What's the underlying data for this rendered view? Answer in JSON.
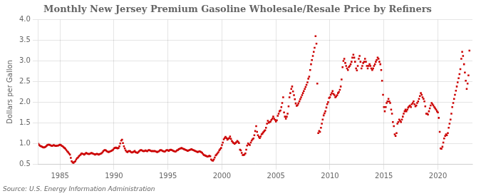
{
  "chart_data": {
    "type": "scatter",
    "title": "Monthly New Jersey Premium Gasoline Wholesale/Resale Price by Refiners",
    "ylabel": "Dollars per Gallon",
    "source": "Source: U.S. Energy Information Administration",
    "color": "#CC0000",
    "marker": "square",
    "grid": true,
    "xlim": [
      1983.0,
      2023.2
    ],
    "ylim": [
      0.5,
      4.0
    ],
    "xticks": [
      1985,
      1990,
      1995,
      2000,
      2005,
      2010,
      2015,
      2020
    ],
    "yticks": [
      0.5,
      {
        "value": 1.0,
        "label": "1.0"
      },
      1.5,
      {
        "value": 2.0,
        "label": "2.0"
      },
      2.5,
      {
        "value": 3.0,
        "label": "3.0"
      },
      3.5,
      {
        "value": 4.0,
        "label": "4.0"
      }
    ],
    "x": [
      1983.0,
      1983.08,
      1983.17,
      1983.25,
      1983.33,
      1983.42,
      1983.5,
      1983.58,
      1983.67,
      1983.75,
      1983.83,
      1983.92,
      1984.0,
      1984.08,
      1984.17,
      1984.25,
      1984.33,
      1984.42,
      1984.5,
      1984.58,
      1984.67,
      1984.75,
      1984.83,
      1984.92,
      1985.0,
      1985.08,
      1985.17,
      1985.25,
      1985.33,
      1985.42,
      1985.5,
      1985.58,
      1985.67,
      1985.75,
      1985.83,
      1985.92,
      1986.0,
      1986.08,
      1986.17,
      1986.25,
      1986.33,
      1986.42,
      1986.5,
      1986.58,
      1986.67,
      1986.75,
      1986.83,
      1986.92,
      1987.0,
      1987.08,
      1987.17,
      1987.25,
      1987.33,
      1987.42,
      1987.5,
      1987.58,
      1987.67,
      1987.75,
      1987.83,
      1987.92,
      1988.0,
      1988.08,
      1988.17,
      1988.25,
      1988.33,
      1988.42,
      1988.5,
      1988.58,
      1988.67,
      1988.75,
      1988.83,
      1988.92,
      1989.0,
      1989.08,
      1989.17,
      1989.25,
      1989.33,
      1989.42,
      1989.5,
      1989.58,
      1989.67,
      1989.75,
      1989.83,
      1989.92,
      1990.0,
      1990.08,
      1990.17,
      1990.25,
      1990.33,
      1990.42,
      1990.5,
      1990.58,
      1990.67,
      1990.75,
      1990.83,
      1990.92,
      1991.0,
      1991.08,
      1991.17,
      1991.25,
      1991.33,
      1991.42,
      1991.5,
      1991.58,
      1991.67,
      1991.75,
      1991.83,
      1991.92,
      1992.0,
      1992.08,
      1992.17,
      1992.25,
      1992.33,
      1992.42,
      1992.5,
      1992.58,
      1992.67,
      1992.75,
      1992.83,
      1992.92,
      1993.0,
      1993.08,
      1993.17,
      1993.25,
      1993.33,
      1993.42,
      1993.5,
      1993.58,
      1993.67,
      1993.75,
      1993.83,
      1993.92,
      1994.0,
      1994.08,
      1994.17,
      1994.25,
      1994.33,
      1994.42,
      1994.5,
      1994.58,
      1994.67,
      1994.75,
      1994.83,
      1994.92,
      1995.0,
      1995.08,
      1995.17,
      1995.25,
      1995.33,
      1995.42,
      1995.5,
      1995.58,
      1995.67,
      1995.75,
      1995.83,
      1995.92,
      1996.0,
      1996.08,
      1996.17,
      1996.25,
      1996.33,
      1996.42,
      1996.5,
      1996.58,
      1996.67,
      1996.75,
      1996.83,
      1996.92,
      1997.0,
      1997.08,
      1997.17,
      1997.25,
      1997.33,
      1997.42,
      1997.5,
      1997.58,
      1997.67,
      1997.75,
      1997.83,
      1997.92,
      1998.0,
      1998.08,
      1998.17,
      1998.25,
      1998.33,
      1998.42,
      1998.5,
      1998.58,
      1998.67,
      1998.75,
      1998.83,
      1998.92,
      1999.0,
      1999.08,
      1999.17,
      1999.25,
      1999.33,
      1999.42,
      1999.5,
      1999.58,
      1999.67,
      1999.75,
      1999.83,
      1999.92,
      2000.0,
      2000.08,
      2000.17,
      2000.25,
      2000.33,
      2000.42,
      2000.5,
      2000.58,
      2000.67,
      2000.75,
      2000.83,
      2000.92,
      2001.0,
      2001.08,
      2001.17,
      2001.25,
      2001.33,
      2001.42,
      2001.5,
      2001.58,
      2001.67,
      2001.75,
      2001.83,
      2001.92,
      2002.0,
      2002.08,
      2002.17,
      2002.25,
      2002.33,
      2002.42,
      2002.5,
      2002.58,
      2002.67,
      2002.75,
      2002.83,
      2002.92,
      2003.0,
      2003.08,
      2003.17,
      2003.25,
      2003.33,
      2003.42,
      2003.5,
      2003.58,
      2003.67,
      2003.75,
      2003.83,
      2003.92,
      2004.0,
      2004.08,
      2004.17,
      2004.25,
      2004.33,
      2004.42,
      2004.5,
      2004.58,
      2004.67,
      2004.75,
      2004.83,
      2004.92,
      2005.0,
      2005.08,
      2005.17,
      2005.25,
      2005.33,
      2005.42,
      2005.5,
      2005.58,
      2005.67,
      2005.75,
      2005.83,
      2005.92,
      2006.0,
      2006.08,
      2006.17,
      2006.25,
      2006.33,
      2006.42,
      2006.5,
      2006.58,
      2006.67,
      2006.75,
      2006.83,
      2006.92,
      2007.0,
      2007.08,
      2007.17,
      2007.25,
      2007.33,
      2007.42,
      2007.5,
      2007.58,
      2007.67,
      2007.75,
      2007.83,
      2007.92,
      2008.0,
      2008.08,
      2008.17,
      2008.25,
      2008.33,
      2008.42,
      2008.5,
      2008.58,
      2008.67,
      2008.75,
      2008.83,
      2008.92,
      2009.0,
      2009.08,
      2009.17,
      2009.25,
      2009.33,
      2009.42,
      2009.5,
      2009.58,
      2009.67,
      2009.75,
      2009.83,
      2009.92,
      2010.0,
      2010.08,
      2010.17,
      2010.25,
      2010.33,
      2010.42,
      2010.5,
      2010.58,
      2010.67,
      2010.75,
      2010.83,
      2010.92,
      2011.0,
      2011.08,
      2011.17,
      2011.25,
      2011.33,
      2011.42,
      2011.5,
      2011.58,
      2011.67,
      2011.75,
      2011.83,
      2011.92,
      2012.0,
      2012.08,
      2012.17,
      2012.25,
      2012.33,
      2012.42,
      2012.5,
      2012.58,
      2012.67,
      2012.75,
      2012.83,
      2012.92,
      2013.0,
      2013.08,
      2013.17,
      2013.25,
      2013.33,
      2013.42,
      2013.5,
      2013.58,
      2013.67,
      2013.75,
      2013.83,
      2013.92,
      2014.0,
      2014.08,
      2014.17,
      2014.25,
      2014.33,
      2014.42,
      2014.5,
      2014.58,
      2014.67,
      2014.75,
      2014.83,
      2014.92,
      2015.0,
      2015.08,
      2015.17,
      2015.25,
      2015.33,
      2015.42,
      2015.5,
      2015.58,
      2015.67,
      2015.75,
      2015.83,
      2015.92,
      2016.0,
      2016.08,
      2016.17,
      2016.25,
      2016.33,
      2016.42,
      2016.5,
      2016.58,
      2016.67,
      2016.75,
      2016.83,
      2016.92,
      2017.0,
      2017.08,
      2017.17,
      2017.25,
      2017.33,
      2017.42,
      2017.5,
      2017.58,
      2017.67,
      2017.75,
      2017.83,
      2017.92,
      2018.0,
      2018.08,
      2018.17,
      2018.25,
      2018.33,
      2018.42,
      2018.5,
      2018.58,
      2018.67,
      2018.75,
      2018.83,
      2018.92,
      2019.0,
      2019.08,
      2019.17,
      2019.25,
      2019.33,
      2019.42,
      2019.5,
      2019.58,
      2019.67,
      2019.75,
      2019.83,
      2019.92,
      2020.0,
      2020.08,
      2020.17,
      2020.25,
      2020.33,
      2020.42,
      2020.5,
      2020.58,
      2020.67,
      2020.75,
      2020.83,
      2020.92,
      2021.0,
      2021.08,
      2021.17,
      2021.25,
      2021.33,
      2021.42,
      2021.5,
      2021.58,
      2021.67,
      2021.75,
      2021.83,
      2021.92,
      2022.0,
      2022.08,
      2022.17,
      2022.25,
      2022.33,
      2022.42,
      2022.5,
      2022.58,
      2022.67,
      2022.75,
      2022.83,
      2022.92
    ],
    "values": [
      0.99,
      0.96,
      0.94,
      0.93,
      0.92,
      0.91,
      0.9,
      0.91,
      0.92,
      0.94,
      0.96,
      0.97,
      0.97,
      0.96,
      0.95,
      0.94,
      0.95,
      0.96,
      0.95,
      0.94,
      0.94,
      0.95,
      0.95,
      0.96,
      0.97,
      0.96,
      0.94,
      0.93,
      0.91,
      0.89,
      0.87,
      0.84,
      0.81,
      0.79,
      0.76,
      0.73,
      0.65,
      0.57,
      0.54,
      0.53,
      0.55,
      0.57,
      0.61,
      0.64,
      0.66,
      0.69,
      0.71,
      0.73,
      0.76,
      0.75,
      0.74,
      0.73,
      0.75,
      0.77,
      0.76,
      0.75,
      0.74,
      0.75,
      0.76,
      0.77,
      0.76,
      0.75,
      0.74,
      0.73,
      0.74,
      0.75,
      0.74,
      0.73,
      0.74,
      0.75,
      0.76,
      0.78,
      0.81,
      0.83,
      0.84,
      0.83,
      0.81,
      0.8,
      0.79,
      0.8,
      0.81,
      0.82,
      0.83,
      0.85,
      0.88,
      0.89,
      0.9,
      0.89,
      0.88,
      0.89,
      0.93,
      1.0,
      1.07,
      1.09,
      1.01,
      0.93,
      0.88,
      0.83,
      0.8,
      0.79,
      0.81,
      0.82,
      0.81,
      0.79,
      0.78,
      0.79,
      0.8,
      0.82,
      0.79,
      0.78,
      0.77,
      0.79,
      0.81,
      0.83,
      0.84,
      0.83,
      0.82,
      0.81,
      0.82,
      0.83,
      0.82,
      0.81,
      0.83,
      0.84,
      0.83,
      0.82,
      0.81,
      0.82,
      0.81,
      0.82,
      0.81,
      0.8,
      0.79,
      0.8,
      0.81,
      0.83,
      0.84,
      0.83,
      0.82,
      0.81,
      0.8,
      0.81,
      0.83,
      0.84,
      0.83,
      0.82,
      0.84,
      0.85,
      0.84,
      0.83,
      0.82,
      0.81,
      0.8,
      0.81,
      0.83,
      0.84,
      0.86,
      0.87,
      0.88,
      0.89,
      0.88,
      0.87,
      0.86,
      0.85,
      0.84,
      0.83,
      0.82,
      0.83,
      0.84,
      0.85,
      0.86,
      0.85,
      0.84,
      0.83,
      0.82,
      0.81,
      0.8,
      0.79,
      0.8,
      0.81,
      0.8,
      0.79,
      0.77,
      0.74,
      0.72,
      0.71,
      0.7,
      0.69,
      0.68,
      0.69,
      0.7,
      0.69,
      0.61,
      0.59,
      0.58,
      0.61,
      0.66,
      0.71,
      0.73,
      0.76,
      0.79,
      0.83,
      0.86,
      0.89,
      0.96,
      1.02,
      1.1,
      1.13,
      1.16,
      1.13,
      1.09,
      1.11,
      1.13,
      1.17,
      1.11,
      1.06,
      1.03,
      1.01,
      0.99,
      1.01,
      1.03,
      1.06,
      1.04,
      1.01,
      0.85,
      0.83,
      0.77,
      0.72,
      0.72,
      0.73,
      0.76,
      0.85,
      0.95,
      1.0,
      0.98,
      0.96,
      1.02,
      1.07,
      1.1,
      1.12,
      1.2,
      1.3,
      1.42,
      1.28,
      1.2,
      1.16,
      1.13,
      1.17,
      1.22,
      1.24,
      1.27,
      1.3,
      1.32,
      1.38,
      1.48,
      1.55,
      1.5,
      1.52,
      1.53,
      1.57,
      1.6,
      1.65,
      1.6,
      1.57,
      1.53,
      1.56,
      1.67,
      1.72,
      1.78,
      1.8,
      1.88,
      1.98,
      2.12,
      1.75,
      1.65,
      1.6,
      1.65,
      1.72,
      1.9,
      2.12,
      2.22,
      2.32,
      2.38,
      2.26,
      2.17,
      2.07,
      1.97,
      1.91,
      1.93,
      1.97,
      2.02,
      2.07,
      2.12,
      2.17,
      2.22,
      2.27,
      2.32,
      2.37,
      2.42,
      2.48,
      2.57,
      2.62,
      2.78,
      2.92,
      3.02,
      3.12,
      3.22,
      3.32,
      3.6,
      3.42,
      2.45,
      1.25,
      1.3,
      1.28,
      1.38,
      1.48,
      1.58,
      1.68,
      1.73,
      1.78,
      1.87,
      1.95,
      2.0,
      2.1,
      2.12,
      2.18,
      2.22,
      2.27,
      2.2,
      2.17,
      2.12,
      2.14,
      2.17,
      2.22,
      2.25,
      2.3,
      2.38,
      2.55,
      2.85,
      3.0,
      3.05,
      2.95,
      2.88,
      2.82,
      2.78,
      2.85,
      2.88,
      2.92,
      2.98,
      3.08,
      3.15,
      3.08,
      2.98,
      2.82,
      2.77,
      2.88,
      3.05,
      3.12,
      2.98,
      2.82,
      2.88,
      2.95,
      2.98,
      3.05,
      2.98,
      2.88,
      2.82,
      2.88,
      2.92,
      2.88,
      2.82,
      2.78,
      2.82,
      2.88,
      2.92,
      2.98,
      3.02,
      3.08,
      3.05,
      2.98,
      2.92,
      2.78,
      2.52,
      2.18,
      1.88,
      1.78,
      1.88,
      1.98,
      2.02,
      2.08,
      2.02,
      1.98,
      1.82,
      1.72,
      1.52,
      1.42,
      1.22,
      1.18,
      1.25,
      1.48,
      1.52,
      1.58,
      1.55,
      1.52,
      1.58,
      1.65,
      1.72,
      1.78,
      1.82,
      1.78,
      1.82,
      1.87,
      1.9,
      1.92,
      1.88,
      1.95,
      1.98,
      2.02,
      1.95,
      1.9,
      1.92,
      1.98,
      2.02,
      2.08,
      2.15,
      2.22,
      2.18,
      2.12,
      2.08,
      2.02,
      1.9,
      1.72,
      1.72,
      1.7,
      1.78,
      1.85,
      1.92,
      1.98,
      1.95,
      1.92,
      1.88,
      1.85,
      1.82,
      1.78,
      1.75,
      1.62,
      1.28,
      0.88,
      0.87,
      0.92,
      1.02,
      1.12,
      1.18,
      1.22,
      1.2,
      1.25,
      1.38,
      1.48,
      1.58,
      1.72,
      1.88,
      1.98,
      2.08,
      2.18,
      2.28,
      2.38,
      2.48,
      2.58,
      2.68,
      2.8,
      3.05,
      3.22,
      3.12,
      2.92,
      2.72,
      2.52,
      2.32,
      2.45,
      2.65,
      3.25
    ]
  }
}
